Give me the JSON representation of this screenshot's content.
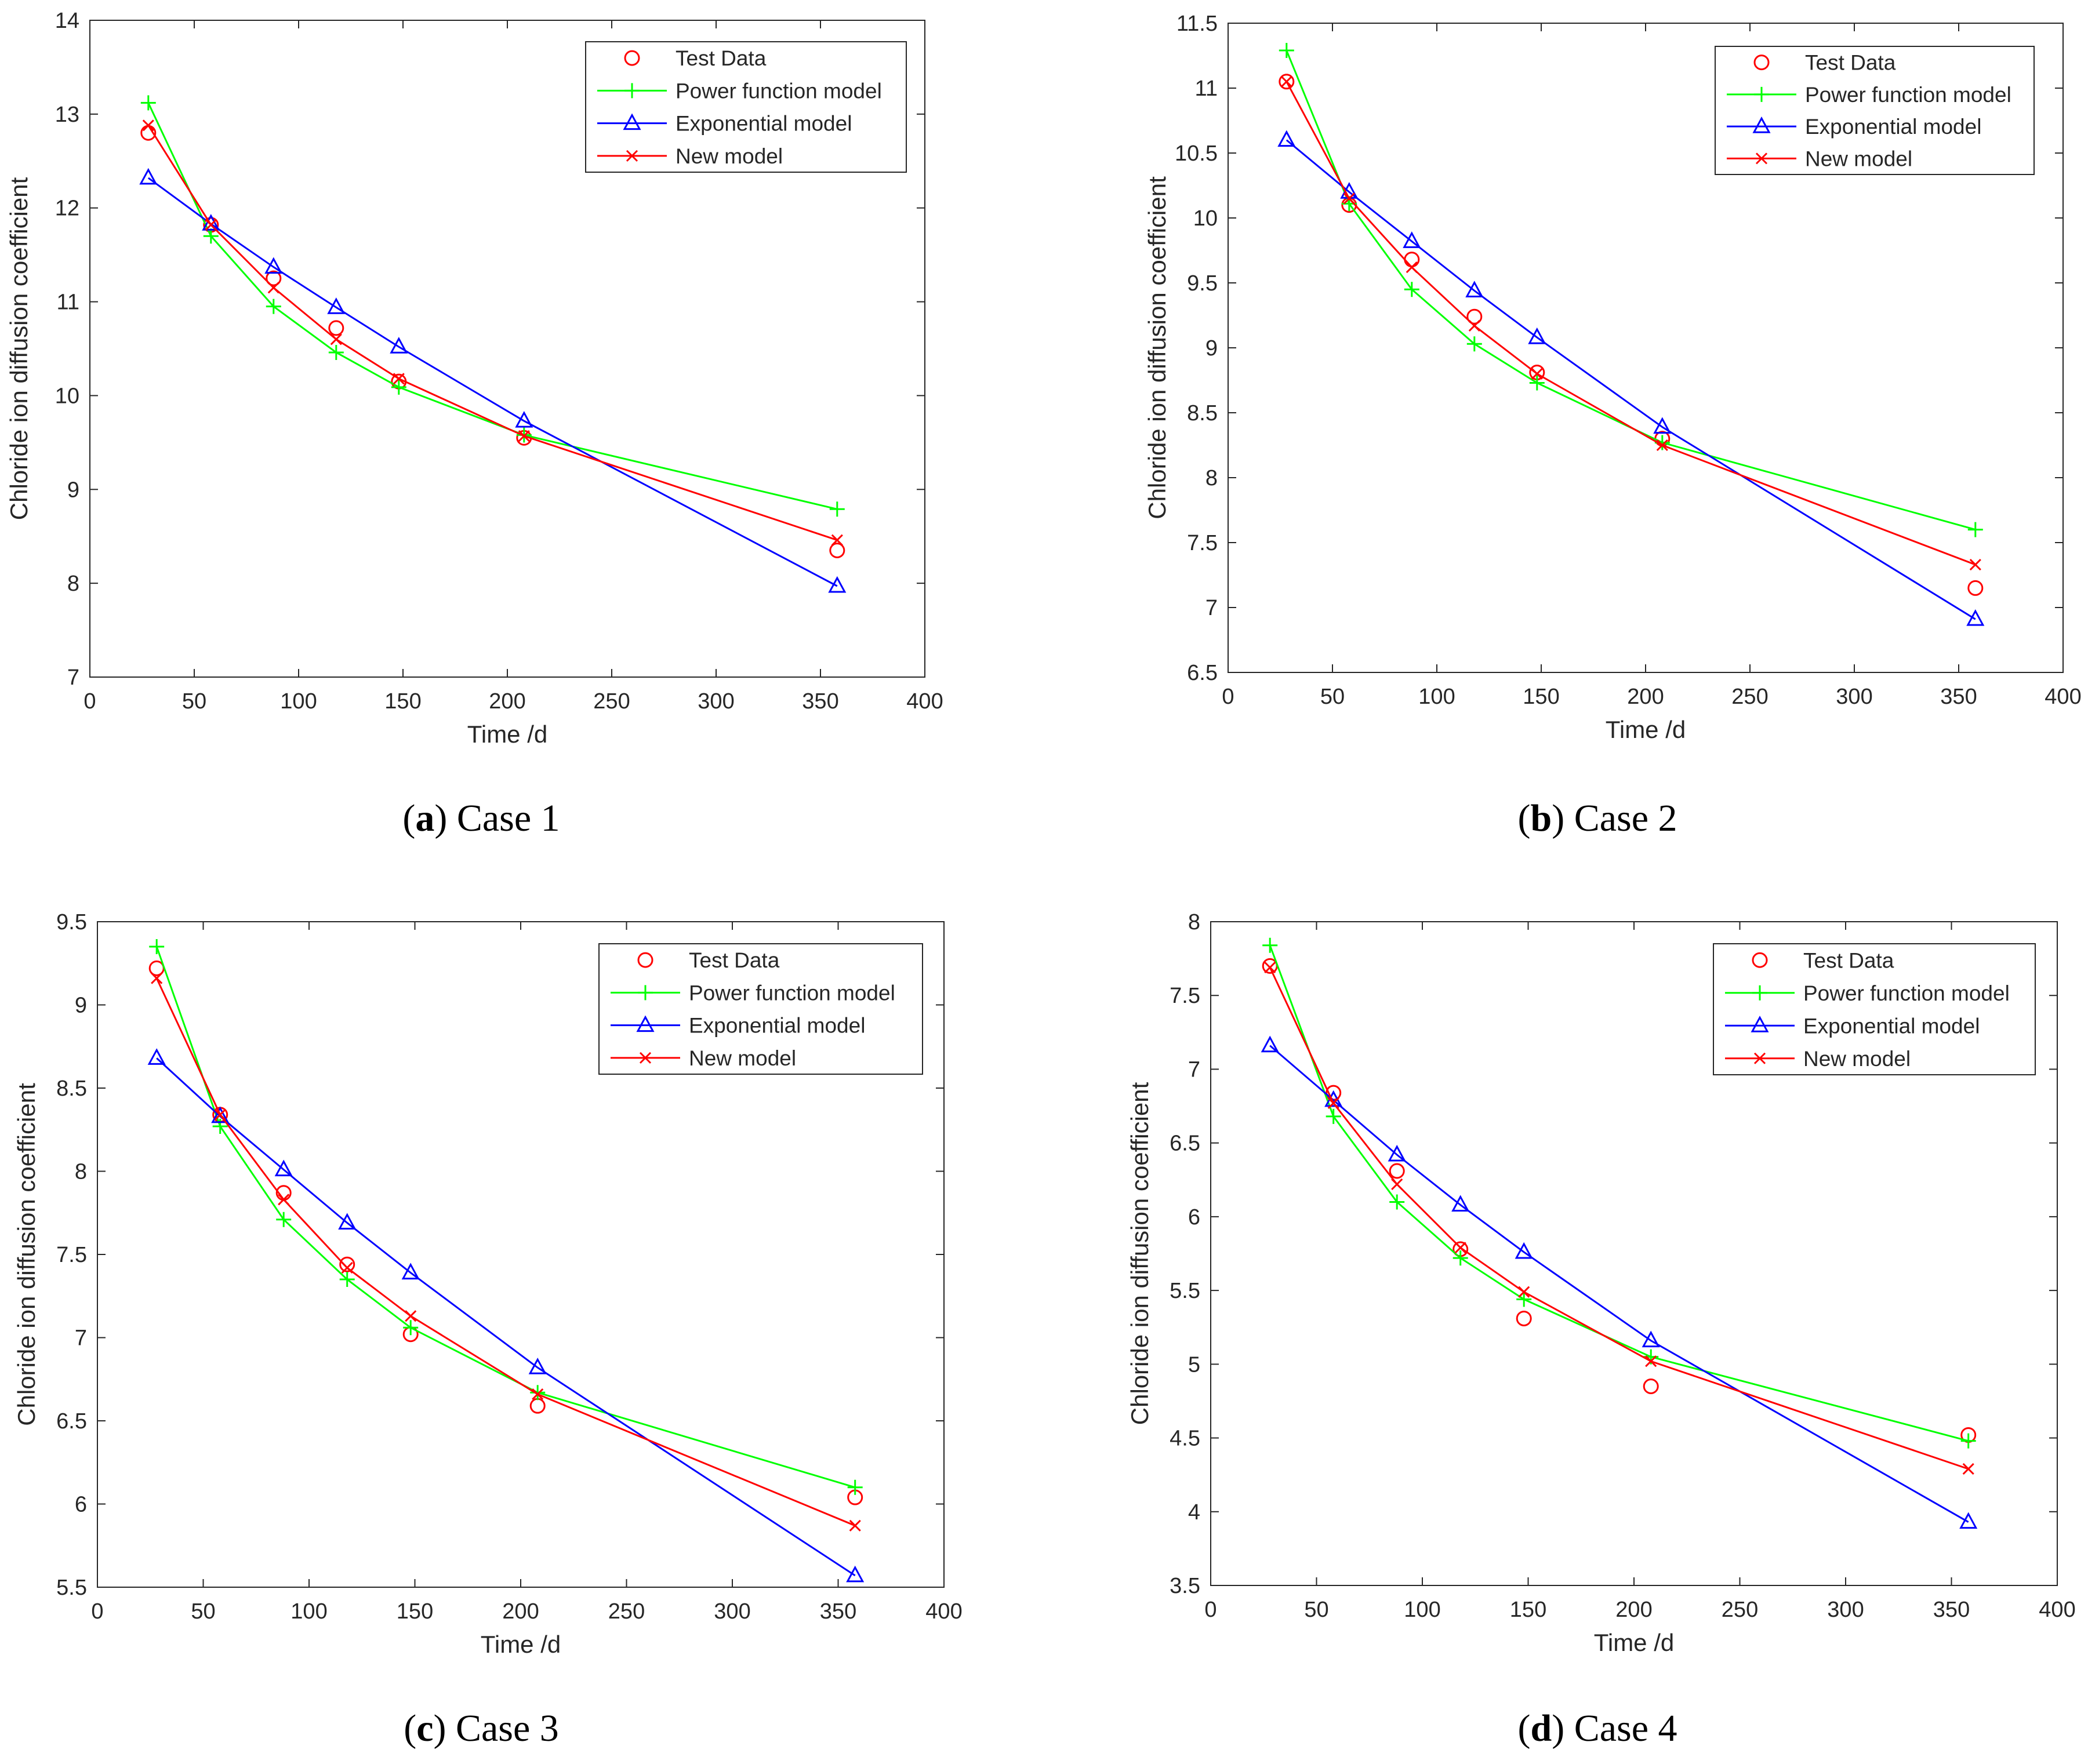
{
  "figure": {
    "panels": [
      {
        "caption_letter": "a",
        "caption_text": " Case 1"
      },
      {
        "caption_letter": "b",
        "caption_text": " Case 2"
      },
      {
        "caption_letter": "c",
        "caption_text": " Case 3"
      },
      {
        "caption_letter": "d",
        "caption_text": " Case 4"
      }
    ]
  },
  "colors": {
    "test": "#ff0000",
    "power": "#00ff00",
    "exponential": "#0000ff",
    "new": "#ff0000",
    "axis": "#262626"
  },
  "chart_data": [
    {
      "type": "line",
      "title": "",
      "xlabel": "Time /d",
      "ylabel": "Chloride ion diffusion coefficient",
      "xlim": [
        0,
        400
      ],
      "ylim": [
        7,
        14
      ],
      "xticks": [
        "0",
        "50",
        "100",
        "150",
        "200",
        "250",
        "300",
        "350",
        "400"
      ],
      "yticks": [
        "7",
        "8",
        "9",
        "10",
        "11",
        "12",
        "13",
        "14"
      ],
      "legend_position": "top-right",
      "x": [
        28,
        58,
        88,
        118,
        148,
        208,
        358
      ],
      "series": [
        {
          "name": "Test Data",
          "marker": "circle",
          "line": false,
          "values": [
            12.8,
            11.82,
            11.25,
            10.72,
            10.15,
            9.55,
            8.35
          ]
        },
        {
          "name": "Power function model",
          "marker": "plus",
          "line": true,
          "values": [
            13.12,
            11.7,
            10.95,
            10.46,
            10.09,
            9.58,
            8.79
          ]
        },
        {
          "name": "Exponential model",
          "marker": "triangle",
          "line": true,
          "values": [
            12.32,
            11.83,
            11.37,
            10.94,
            10.52,
            9.73,
            7.97
          ]
        },
        {
          "name": "New model",
          "marker": "cross",
          "line": true,
          "values": [
            12.88,
            11.82,
            11.15,
            10.6,
            10.18,
            9.57,
            8.46
          ]
        }
      ]
    },
    {
      "type": "line",
      "title": "",
      "xlabel": "Time /d",
      "ylabel": "Chloride ion diffusion coefficient",
      "xlim": [
        0,
        400
      ],
      "ylim": [
        6.5,
        11.5
      ],
      "xticks": [
        "0",
        "50",
        "100",
        "150",
        "200",
        "250",
        "300",
        "350",
        "400"
      ],
      "yticks": [
        "6.5",
        "7",
        "7.5",
        "8",
        "8.5",
        "9",
        "9.5",
        "10",
        "10.5",
        "11",
        "11.5"
      ],
      "legend_position": "top-right",
      "x": [
        28,
        58,
        88,
        118,
        148,
        208,
        358
      ],
      "series": [
        {
          "name": "Test Data",
          "marker": "circle",
          "line": false,
          "values": [
            11.05,
            10.1,
            9.68,
            9.24,
            8.81,
            8.3,
            7.15
          ]
        },
        {
          "name": "Power function model",
          "marker": "plus",
          "line": true,
          "values": [
            11.29,
            10.11,
            9.45,
            9.03,
            8.73,
            8.27,
            7.6
          ]
        },
        {
          "name": "Exponential model",
          "marker": "triangle",
          "line": true,
          "values": [
            10.6,
            10.2,
            9.82,
            9.44,
            9.08,
            8.39,
            6.91
          ]
        },
        {
          "name": "New model",
          "marker": "cross",
          "line": true,
          "values": [
            11.05,
            10.15,
            9.62,
            9.17,
            8.8,
            8.25,
            7.33
          ]
        }
      ]
    },
    {
      "type": "line",
      "title": "",
      "xlabel": "Time /d",
      "ylabel": "Chloride ion diffusion coefficient",
      "xlim": [
        0,
        400
      ],
      "ylim": [
        5.5,
        9.5
      ],
      "xticks": [
        "0",
        "50",
        "100",
        "150",
        "200",
        "250",
        "300",
        "350",
        "400"
      ],
      "yticks": [
        "5.5",
        "6",
        "6.5",
        "7",
        "7.5",
        "8",
        "8.5",
        "9",
        "9.5"
      ],
      "legend_position": "top-right",
      "x": [
        28,
        58,
        88,
        118,
        148,
        208,
        358
      ],
      "series": [
        {
          "name": "Test Data",
          "marker": "circle",
          "line": false,
          "values": [
            9.22,
            8.34,
            7.87,
            7.44,
            7.02,
            6.59,
            6.04
          ]
        },
        {
          "name": "Power function model",
          "marker": "plus",
          "line": true,
          "values": [
            9.35,
            8.27,
            7.71,
            7.35,
            7.06,
            6.67,
            6.1
          ]
        },
        {
          "name": "Exponential model",
          "marker": "triangle",
          "line": true,
          "values": [
            8.68,
            8.33,
            8.01,
            7.69,
            7.39,
            6.82,
            5.57
          ]
        },
        {
          "name": "New model",
          "marker": "cross",
          "line": true,
          "values": [
            9.16,
            8.34,
            7.83,
            7.42,
            7.13,
            6.66,
            5.87
          ]
        }
      ]
    },
    {
      "type": "line",
      "title": "",
      "xlabel": "Time /d",
      "ylabel": "Chloride ion diffusion coefficient",
      "xlim": [
        0,
        400
      ],
      "ylim": [
        3.5,
        8
      ],
      "xticks": [
        "0",
        "50",
        "100",
        "150",
        "200",
        "250",
        "300",
        "350",
        "400"
      ],
      "yticks": [
        "3.5",
        "4",
        "4.5",
        "5",
        "5.5",
        "6",
        "6.5",
        "7",
        "7.5",
        "8"
      ],
      "legend_position": "top-right",
      "x": [
        28,
        58,
        88,
        118,
        148,
        208,
        358
      ],
      "series": [
        {
          "name": "Test Data",
          "marker": "circle",
          "line": false,
          "values": [
            7.7,
            6.84,
            6.31,
            5.78,
            5.31,
            4.85,
            4.52
          ]
        },
        {
          "name": "Power function model",
          "marker": "plus",
          "line": true,
          "values": [
            7.84,
            6.68,
            6.1,
            5.72,
            5.44,
            5.05,
            4.48
          ]
        },
        {
          "name": "Exponential model",
          "marker": "triangle",
          "line": true,
          "values": [
            7.16,
            6.79,
            6.42,
            6.08,
            5.76,
            5.16,
            3.93
          ]
        },
        {
          "name": "New model",
          "marker": "cross",
          "line": true,
          "values": [
            7.69,
            6.77,
            6.22,
            5.79,
            5.49,
            5.02,
            4.29
          ]
        }
      ]
    }
  ]
}
